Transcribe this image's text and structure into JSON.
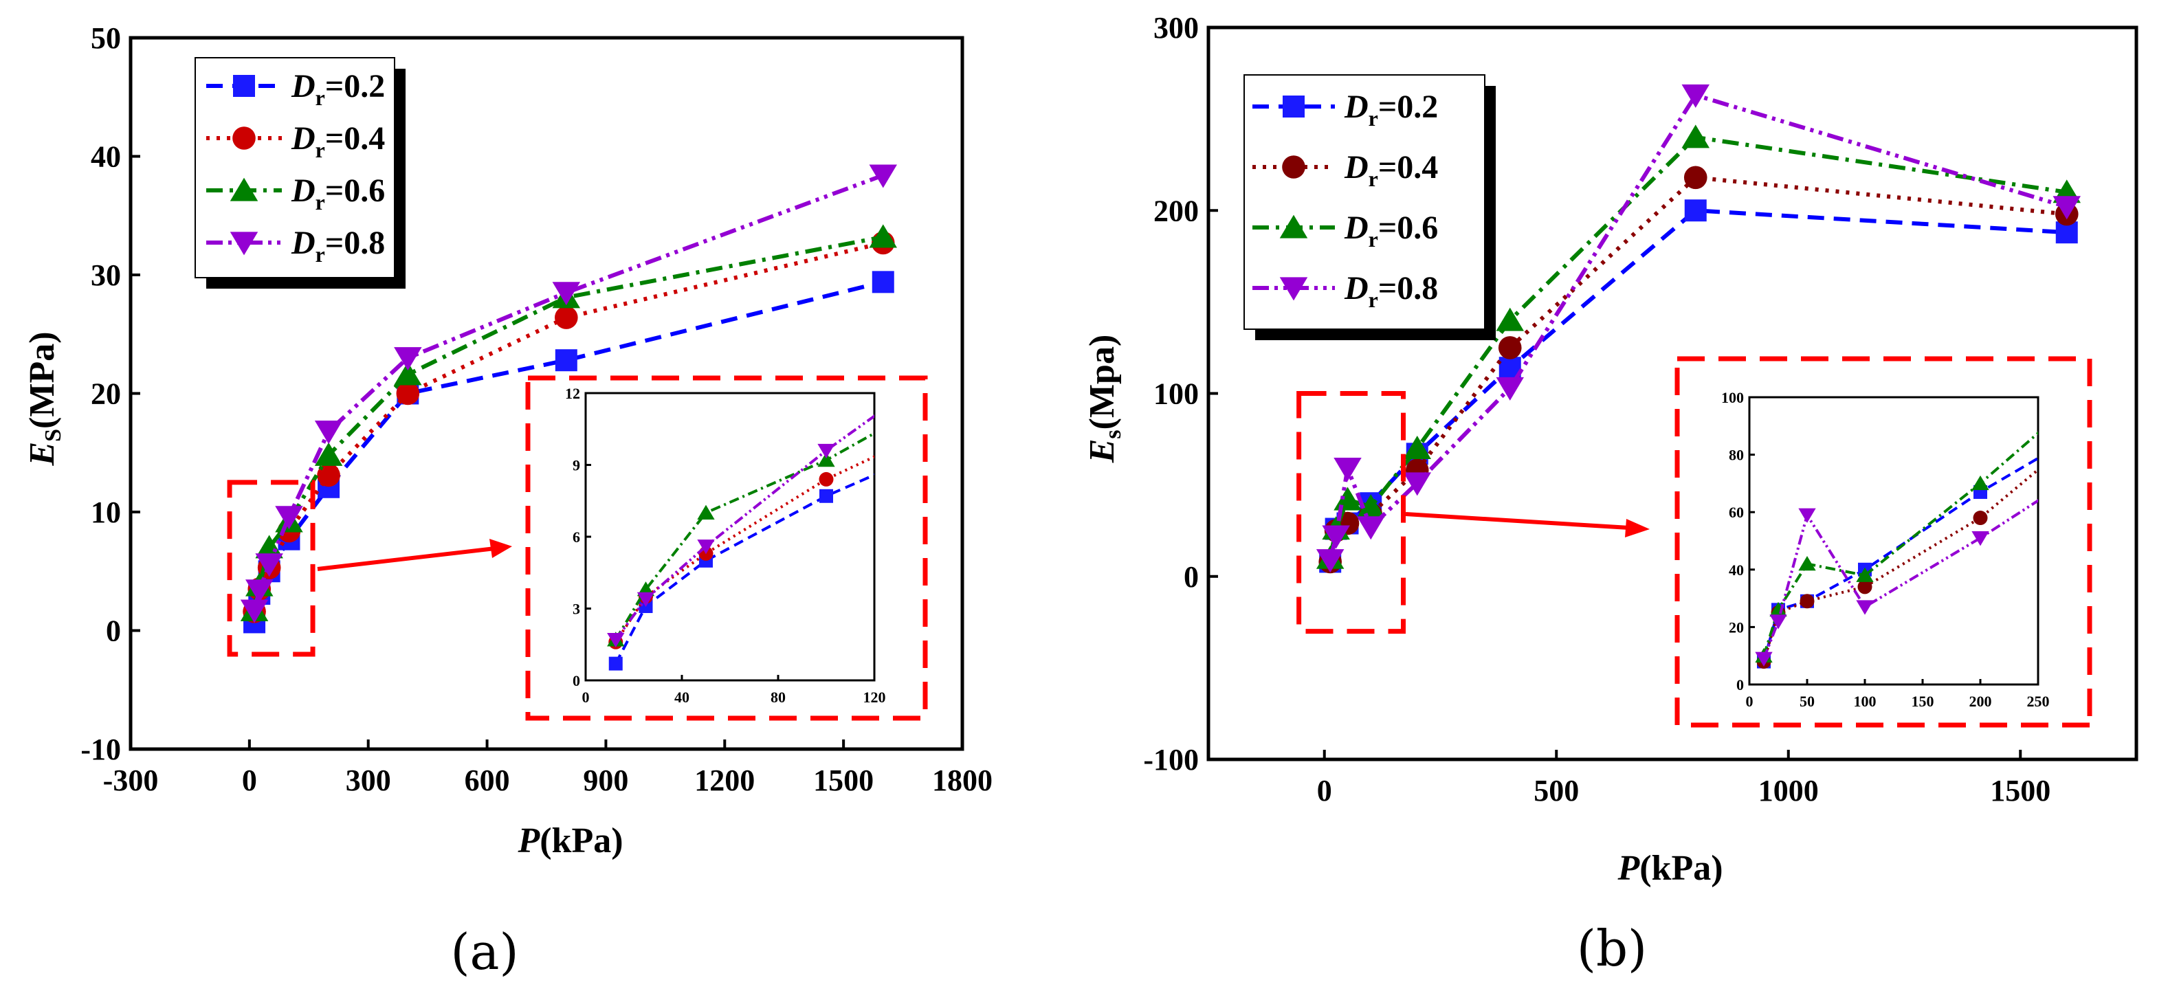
{
  "colors": {
    "d02": "#0000ff",
    "d04": "#cc0000",
    "d04b": "#8b0000",
    "d06": "#008000",
    "d08": "#9400d3",
    "zoom": "#ff0000",
    "d02_fill_a": "#1a1aff",
    "d02_fill_b": "#1a1aff",
    "d04_fill_a": "#cc0000",
    "d04_fill_b": "#800000",
    "d06_fill": "#008000",
    "d08_fill": "#9400d3"
  },
  "chart_data": [
    {
      "id": "a",
      "type": "line",
      "panel_label": "(a)",
      "xlabel_italic": "P",
      "xlabel_rest": "(kPa)",
      "ylabel_main": "E",
      "ylabel_sub": "S",
      "ylabel_rest": "(MPa)",
      "xlim": [
        -300,
        1800
      ],
      "ylim": [
        -10,
        50
      ],
      "xticks": [
        -300,
        0,
        300,
        600,
        900,
        1200,
        1500,
        1800
      ],
      "yticks": [
        -10,
        0,
        10,
        20,
        30,
        40,
        50
      ],
      "legend_position": "top-left",
      "series": [
        {
          "key": "d02",
          "label_pre": "D",
          "label_sub": "r",
          "label_post": "=0.2",
          "marker": "square",
          "dash": "dashed",
          "x": [
            12.5,
            25,
            50,
            100,
            200,
            400,
            800,
            1600
          ],
          "y": [
            0.7,
            3.1,
            5.0,
            7.7,
            12.1,
            20.0,
            22.8,
            29.4
          ]
        },
        {
          "key": "d04",
          "label_pre": "D",
          "label_sub": "r",
          "label_post": "=0.4",
          "marker": "circle",
          "dash": "dotted",
          "x": [
            12.5,
            25,
            50,
            100,
            200,
            400,
            800,
            1600
          ],
          "y": [
            1.6,
            3.5,
            5.3,
            8.4,
            13.1,
            20.0,
            26.4,
            32.7
          ]
        },
        {
          "key": "d06",
          "label_pre": "D",
          "label_sub": "r",
          "label_post": "=0.6",
          "marker": "triangle-up",
          "dash": "dashdot",
          "x": [
            12.5,
            25,
            50,
            100,
            200,
            400,
            800,
            1600
          ],
          "y": [
            1.7,
            3.8,
            7.0,
            9.2,
            14.8,
            21.6,
            28.1,
            33.2
          ]
        },
        {
          "key": "d08",
          "label_pre": "D",
          "label_sub": "r",
          "label_post": "=0.8",
          "marker": "triangle-down",
          "dash": "dashdotdot",
          "x": [
            12.5,
            25,
            50,
            100,
            200,
            400,
            800,
            1600
          ],
          "y": [
            1.7,
            3.4,
            5.6,
            9.6,
            16.8,
            23.0,
            28.5,
            38.4
          ]
        }
      ],
      "inset": {
        "xlim": [
          0,
          120
        ],
        "ylim": [
          0,
          12
        ],
        "xticks": [
          0,
          40,
          80,
          120
        ],
        "yticks": [
          0,
          3,
          6,
          9,
          12
        ],
        "source_box_x": [
          -50,
          160
        ],
        "source_box_y": [
          -2,
          12.5
        ]
      }
    },
    {
      "id": "b",
      "type": "line",
      "panel_label": "(b)",
      "xlabel_italic": "P",
      "xlabel_rest": "(kPa)",
      "ylabel_main": "E",
      "ylabel_sub": "s",
      "ylabel_rest": "(Mpa)",
      "xlim": [
        -250,
        1750
      ],
      "ylim": [
        -100,
        300
      ],
      "xticks": [
        0,
        500,
        1000,
        1500
      ],
      "yticks": [
        -100,
        0,
        100,
        200,
        300
      ],
      "legend_position": "top-left",
      "series": [
        {
          "key": "d02",
          "label_pre": "D",
          "label_sub": "r",
          "label_post": "=0.2",
          "marker": "square",
          "dash": "dashed",
          "x": [
            12.5,
            25,
            50,
            100,
            200,
            400,
            800,
            1600
          ],
          "y": [
            8,
            26,
            29,
            40,
            67,
            114,
            200,
            188
          ]
        },
        {
          "key": "d04",
          "label_pre": "D",
          "label_sub": "r",
          "label_post": "=0.4",
          "marker": "circle",
          "dash": "dotted",
          "x": [
            12.5,
            25,
            50,
            100,
            200,
            400,
            800,
            1600
          ],
          "y": [
            8,
            25,
            29,
            34,
            58,
            125,
            218,
            198
          ]
        },
        {
          "key": "d06",
          "label_pre": "D",
          "label_sub": "r",
          "label_post": "=0.6",
          "marker": "triangle-up",
          "dash": "dashdot",
          "x": [
            12.5,
            25,
            50,
            100,
            200,
            400,
            800,
            1600
          ],
          "y": [
            10,
            26,
            42,
            38,
            70,
            140,
            240,
            210
          ]
        },
        {
          "key": "d08",
          "label_pre": "D",
          "label_sub": "r",
          "label_post": "=0.8",
          "marker": "triangle-down",
          "dash": "dashdotdot",
          "x": [
            12.5,
            25,
            50,
            100,
            200,
            400,
            800,
            1600
          ],
          "y": [
            9,
            22,
            59,
            27,
            51,
            103,
            263,
            202
          ]
        }
      ],
      "inset": {
        "xlim": [
          0,
          250
        ],
        "ylim": [
          0,
          100
        ],
        "xticks": [
          0,
          50,
          100,
          150,
          200,
          250
        ],
        "yticks": [
          0,
          20,
          40,
          60,
          80,
          100
        ],
        "source_box_x": [
          -55,
          170
        ],
        "source_box_y": [
          -30,
          100
        ]
      }
    }
  ]
}
